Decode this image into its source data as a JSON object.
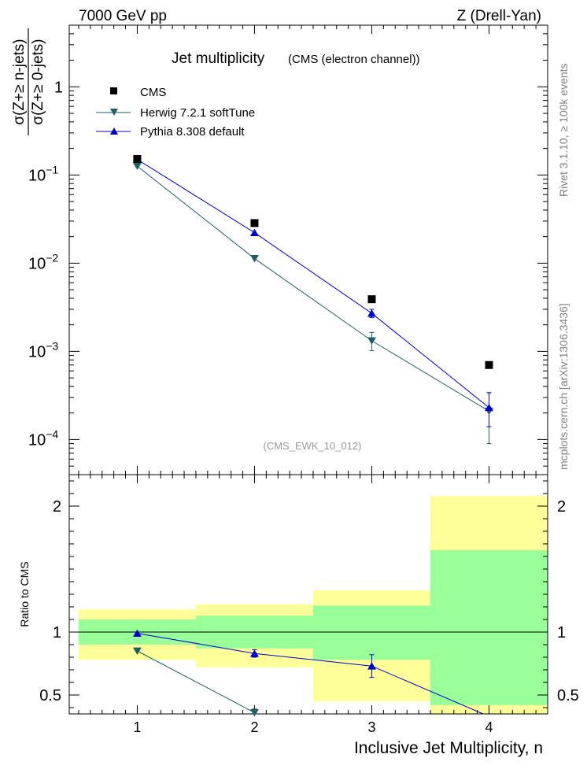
{
  "header": {
    "left": "7000 GeV pp",
    "right": "Z (Drell-Yan)"
  },
  "title": "Jet multiplicity",
  "subtitle": "(CMS (electron channel))",
  "analysis_id": "(CMS_EWK_10_012)",
  "side_notes": {
    "rivet": "Rivet 3.1.10, ≥ 100k events",
    "mcplots": "mcplots.cern.ch [arXiv:1306.3436]"
  },
  "colors": {
    "cms": "#000000",
    "herwig": "#1f5f66",
    "pythia": "#0000cc",
    "band_green": "#99ff99",
    "band_yellow": "#ffff99"
  },
  "chart_data": [
    {
      "type": "scatter",
      "name": "main",
      "yscale": "log",
      "ylabel_numerator": "σ(Z+≥ n-jets)",
      "ylabel_denominator": "σ(Z+≥ 0-jets)",
      "xlim": [
        0.42,
        4.5
      ],
      "ylim": [
        4e-05,
        5
      ],
      "x_ticks": [
        1,
        2,
        3,
        4
      ],
      "y_ticks": [
        {
          "value": 0.0001,
          "base": "10",
          "exp": "−4"
        },
        {
          "value": 0.001,
          "base": "10",
          "exp": "−3"
        },
        {
          "value": 0.01,
          "base": "10",
          "exp": "−2"
        },
        {
          "value": 0.1,
          "base": "10",
          "exp": "−1"
        },
        {
          "value": 1,
          "base": "1",
          "exp": ""
        }
      ],
      "series": [
        {
          "name": "CMS",
          "marker": "square",
          "x": [
            1,
            2,
            3,
            4
          ],
          "y": [
            0.152,
            0.0285,
            0.0039,
            0.0007
          ]
        },
        {
          "name": "Herwig 7.2.1 softTune",
          "marker": "triangle-down",
          "x": [
            1,
            2,
            3,
            4
          ],
          "y": [
            0.126,
            0.0113,
            0.00132,
            0.00021
          ],
          "err_low": [
            0,
            0,
            0.0003,
            0.00012
          ],
          "err_high": [
            0,
            0,
            0.00032,
            0.00013
          ]
        },
        {
          "name": "Pythia 8.308 default",
          "marker": "triangle-up",
          "x": [
            1,
            2,
            3,
            4
          ],
          "y": [
            0.15,
            0.0222,
            0.0027,
            0.00023
          ],
          "err_low": [
            0,
            0,
            0.00028,
            9e-05
          ],
          "err_high": [
            0,
            0,
            0.0003,
            0.00011
          ]
        }
      ]
    },
    {
      "type": "line",
      "name": "ratio",
      "ylabel": "Ratio to CMS",
      "xlabel": "Inclusive Jet Multiplicity, n",
      "xlim": [
        0.42,
        4.5
      ],
      "ylim": [
        0.35,
        2.25
      ],
      "x_ticks": [
        1,
        2,
        3,
        4
      ],
      "y_ticks": [
        0.5,
        1,
        2
      ],
      "y_tick_labels": [
        "0.5",
        "1",
        "2"
      ],
      "bands": [
        {
          "x0": 0.5,
          "x1": 1.5,
          "green": [
            0.9,
            1.1
          ],
          "yellow": [
            0.78,
            1.18
          ]
        },
        {
          "x0": 1.5,
          "x1": 2.5,
          "green": [
            0.87,
            1.13
          ],
          "yellow": [
            0.72,
            1.22
          ]
        },
        {
          "x0": 2.5,
          "x1": 3.5,
          "green": [
            0.78,
            1.21
          ],
          "yellow": [
            0.45,
            1.33
          ]
        },
        {
          "x0": 3.5,
          "x1": 4.5,
          "green": [
            0.42,
            1.65
          ],
          "yellow": [
            0.35,
            2.08
          ]
        }
      ],
      "series": [
        {
          "name": "Herwig 7.2.1 softTune",
          "x": [
            1,
            2
          ],
          "y": [
            0.85,
            0.36
          ],
          "err": [
            0,
            0.03
          ],
          "extends_below": false
        },
        {
          "name": "Pythia 8.308 default",
          "x": [
            1,
            2,
            3
          ],
          "y": [
            0.99,
            0.83,
            0.73
          ],
          "err": [
            0,
            0.03,
            0.09
          ],
          "extends_below": true
        }
      ]
    }
  ]
}
